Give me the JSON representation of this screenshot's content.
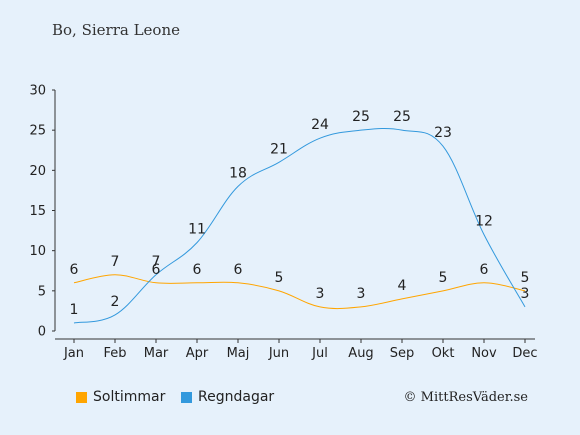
{
  "chart_data": {
    "type": "line",
    "title": "Bo, Sierra Leone",
    "categories": [
      "Jan",
      "Feb",
      "Mar",
      "Apr",
      "Maj",
      "Jun",
      "Jul",
      "Aug",
      "Sep",
      "Okt",
      "Nov",
      "Dec"
    ],
    "ylim": [
      0,
      30
    ],
    "yticks": [
      0,
      5,
      10,
      15,
      20,
      25,
      30
    ],
    "grid": false,
    "legend_position": "bottom-left",
    "series": [
      {
        "name": "Soltimmar",
        "color": "#ffa500",
        "values": [
          6,
          7,
          6,
          6,
          6,
          5,
          3,
          3,
          4,
          5,
          6,
          5
        ]
      },
      {
        "name": "Regndagar",
        "color": "#3399dd",
        "values": [
          1,
          2,
          7,
          11,
          18,
          21,
          24,
          25,
          25,
          23,
          12,
          3
        ]
      }
    ]
  },
  "credit": "© MittResVäder.se",
  "colors": {
    "background": "#e6f1fb",
    "axis": "#333333",
    "label": "#222222"
  }
}
